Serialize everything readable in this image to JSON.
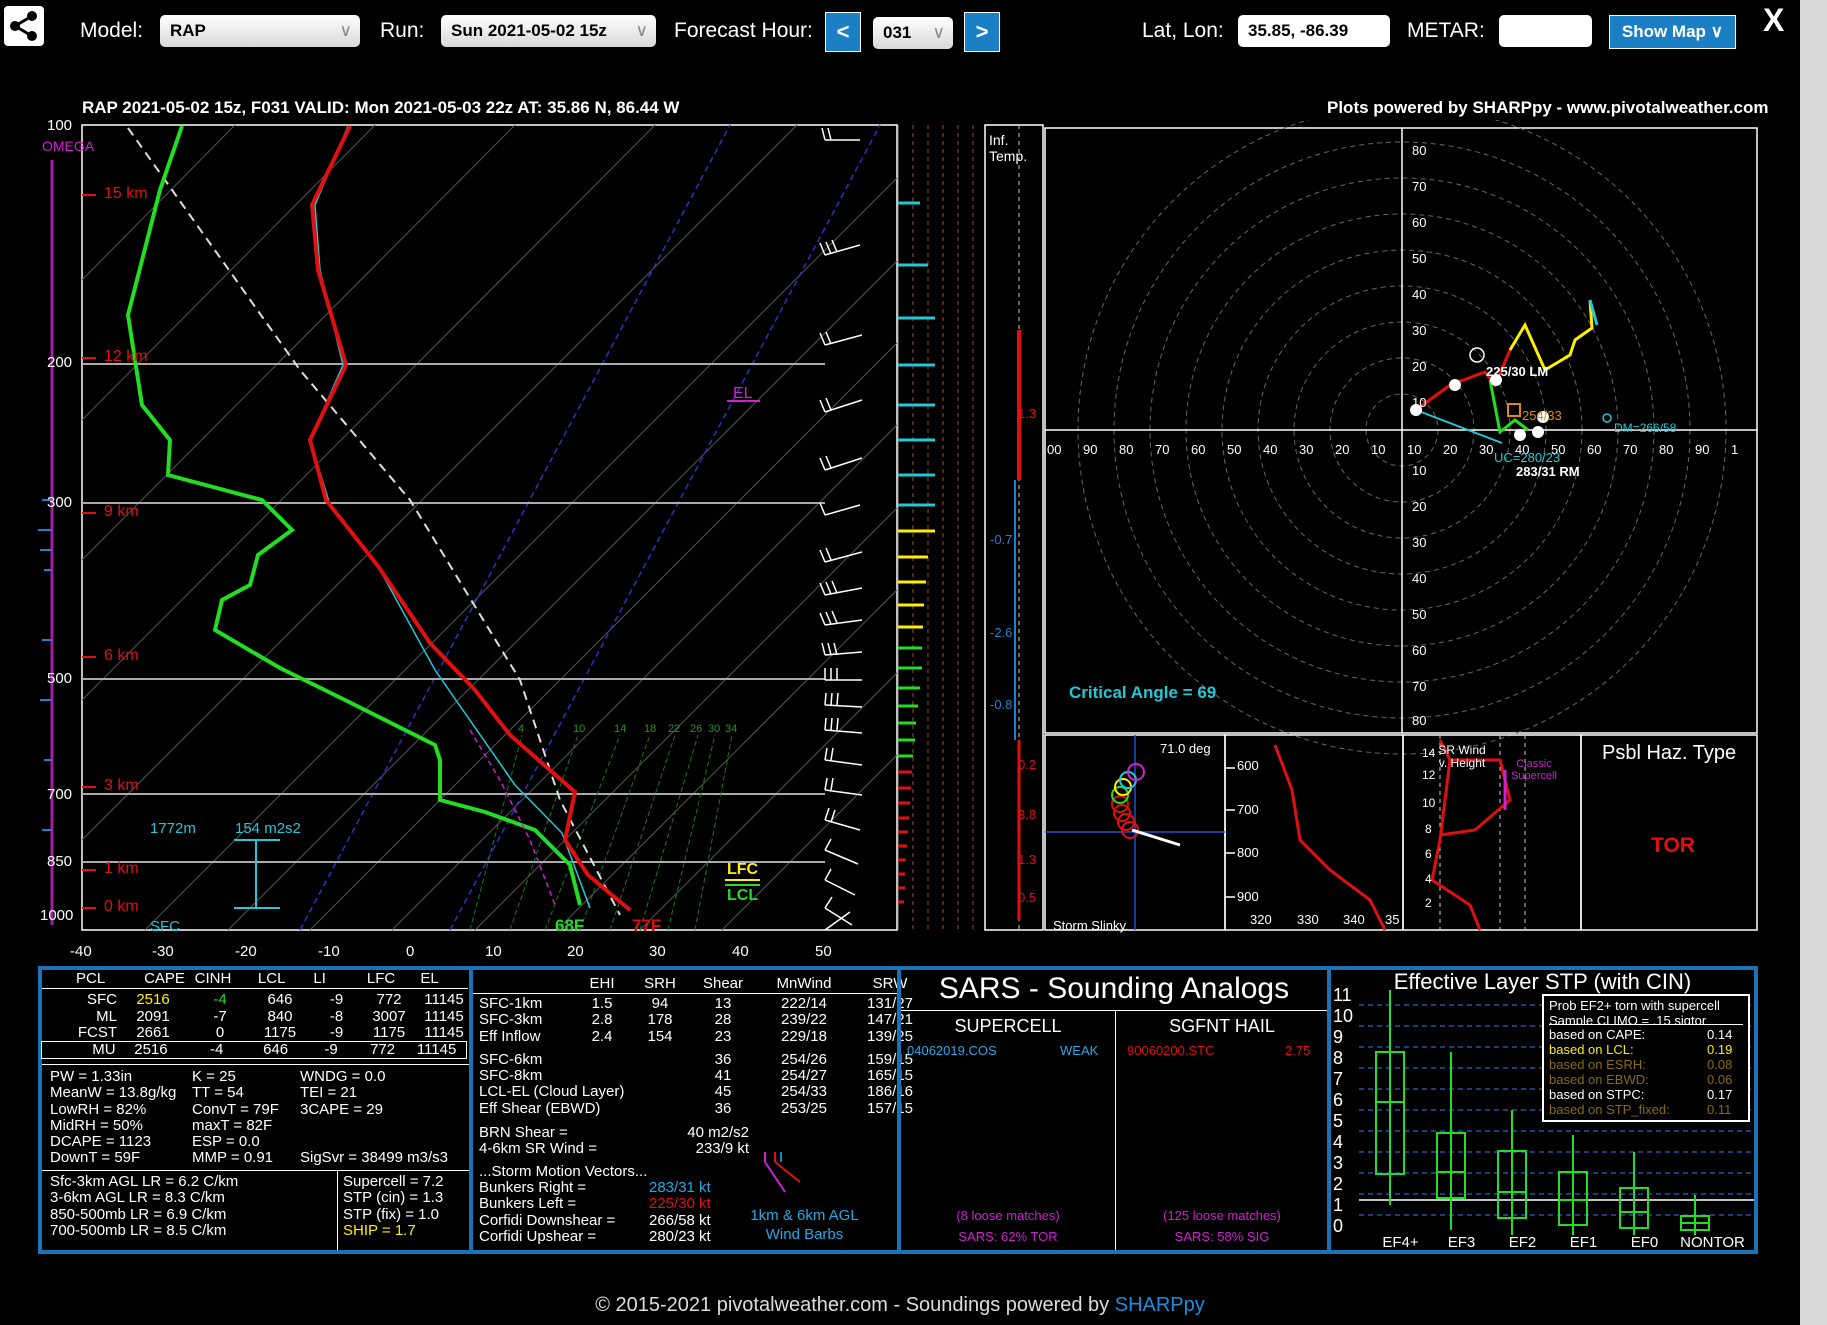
{
  "header": {
    "model_label": "Model:",
    "model_value": "RAP",
    "run_label": "Run:",
    "run_value": "Sun 2021-05-02 15z",
    "forecast_label": "Forecast Hour:",
    "prev": "<",
    "next": ">",
    "forecast_hour": "031",
    "latlon_label": "Lat, Lon:",
    "latlon_value": "35.85, -86.39",
    "metar_label": "METAR:",
    "metar_value": "",
    "show_map": "Show Map ∨",
    "close": "X",
    "share_icon": "share-icon"
  },
  "plot": {
    "title": "RAP 2021-05-02 15z, F031  VALID: Mon 2021-05-03 22z  AT: 35.86 N, 86.44 W",
    "credit": "Plots powered by SHARPpy - www.pivotalweather.com",
    "omega": "OMEGA",
    "pressure_labels": [
      "100",
      "200",
      "300",
      "500",
      "700",
      "850",
      "1000"
    ],
    "km_labels": [
      "15 km",
      "12 km",
      "9 km",
      "6 km",
      "3 km",
      "1 km",
      "0 km"
    ],
    "temp_ticks": [
      "-40",
      "-30",
      "-20",
      "-10",
      "0",
      "10",
      "20",
      "30",
      "40",
      "50"
    ],
    "sfc": "SFC",
    "surface_dewpoint": "68F",
    "surface_temp": "77F",
    "el": "EL",
    "lfc": "LFC",
    "lcl": "LCL",
    "helicity_height": "1772m",
    "helicity_value": "154 m2s2",
    "mixing_ratios": [
      "4",
      "10",
      "14",
      "18",
      "22",
      "26",
      "30",
      "34"
    ],
    "inf_temp": "Inf.\nTemp.",
    "inf_values": [
      "1.3",
      "-0.7",
      "-2.6",
      "-0.8",
      "0.2",
      "3.8",
      "1.3",
      "0.5"
    ],
    "hodo_rings": [
      "80",
      "70",
      "60",
      "50",
      "40",
      "30",
      "20",
      "10"
    ],
    "hodo_x": [
      "00",
      "90",
      "80",
      "70",
      "60",
      "50",
      "40",
      "30",
      "20",
      "10",
      "10",
      "20",
      "30",
      "40",
      "50",
      "60",
      "70",
      "80",
      "90",
      "1"
    ],
    "hodo_lm": "225/30 LM",
    "hodo_mean": "254/33",
    "hodo_dm": "DM=266/58",
    "hodo_uc": "UC=280/23",
    "hodo_rm": "283/31 RM",
    "critical_angle": "Critical Angle = 69",
    "slinky_deg": "71.0 deg",
    "slinky_label": "Storm Slinky",
    "theta_p": [
      "600",
      "700",
      "800",
      "900"
    ],
    "theta_x": [
      "320",
      "330",
      "340",
      "35"
    ],
    "srwind_label": "SR Wind v. Height",
    "srwind_classic": "Classic Supercell",
    "srwind_y": [
      "14",
      "12",
      "10",
      "8",
      "6",
      "4",
      "2"
    ],
    "haz_title": "Psbl Haz. Type",
    "haz_value": "TOR"
  },
  "thermo": {
    "headers": [
      "PCL",
      "CAPE",
      "CINH",
      "LCL",
      "LI",
      "LFC",
      "EL"
    ],
    "rows": [
      [
        "SFC",
        "2516",
        "-4",
        "646",
        "-9",
        "772",
        "11145"
      ],
      [
        "ML",
        "2091",
        "-7",
        "840",
        "-8",
        "3007",
        "11145"
      ],
      [
        "FCST",
        "2661",
        "0",
        "1175",
        "-9",
        "1175",
        "11145"
      ],
      [
        "MU",
        "2516",
        "-4",
        "646",
        "-9",
        "772",
        "11145"
      ]
    ],
    "indices": [
      [
        "PW = 1.33in",
        "K = 25",
        "WNDG = 0.0"
      ],
      [
        "MeanW = 13.8g/kg",
        "TT = 54",
        "TEI = 21"
      ],
      [
        "LowRH = 82%",
        "ConvT = 79F",
        "3CAPE = 29"
      ],
      [
        "MidRH = 50%",
        "maxT = 82F",
        ""
      ],
      [
        "DCAPE = 1123",
        "ESP = 0.0",
        ""
      ],
      [
        "DownT = 59F",
        "MMP = 0.91",
        "SigSvr = 38499 m3/s3"
      ]
    ],
    "lapse": [
      "Sfc-3km AGL LR = 6.2 C/km",
      "3-6km AGL LR = 8.3 C/km",
      "850-500mb LR = 6.9 C/km",
      "700-500mb LR = 8.5 C/km"
    ],
    "composites": [
      "Supercell = 7.2",
      "STP (cin) = 1.3",
      "STP (fix) = 1.0",
      "SHIP = 1.7"
    ]
  },
  "kinematic": {
    "headers": [
      "EHI",
      "SRH",
      "Shear",
      "MnWind",
      "SRW"
    ],
    "rows": [
      [
        "SFC-1km",
        "1.5",
        "94",
        "13",
        "222/14",
        "131/27"
      ],
      [
        "SFC-3km",
        "2.8",
        "178",
        "28",
        "239/22",
        "147/21"
      ],
      [
        "Eff Inflow",
        "2.4",
        "154",
        "23",
        "229/18",
        "139/25"
      ],
      [
        "SFC-6km",
        "",
        "",
        "36",
        "254/26",
        "159/15"
      ],
      [
        "SFC-8km",
        "",
        "",
        "41",
        "254/27",
        "165/15"
      ],
      [
        "LCL-EL (Cloud Layer)",
        "",
        "",
        "45",
        "254/33",
        "186/16"
      ],
      [
        "Eff Shear (EBWD)",
        "",
        "",
        "36",
        "253/25",
        "157/15"
      ]
    ],
    "brn_label": "BRN Shear =",
    "brn_value": "40 m2/s2",
    "sr46_label": "4-6km SR Wind =",
    "sr46_value": "233/9 kt",
    "vectors_title": "...Storm Motion Vectors...",
    "vectors": [
      [
        "Bunkers Right =",
        "283/31 kt"
      ],
      [
        "Bunkers Left =",
        "225/30 kt"
      ],
      [
        "Corfidi Downshear =",
        "266/58 kt"
      ],
      [
        "Corfidi Upshear =",
        "280/23 kt"
      ]
    ],
    "barbs_label": "1km & 6km AGL Wind Barbs"
  },
  "sars": {
    "title": "SARS - Sounding Analogs",
    "supercell": "SUPERCELL",
    "hail": "SGFNT HAIL",
    "sc_match": "04062019.COS",
    "sc_match_val": "WEAK",
    "hail_match": "90060200.STC",
    "hail_match_val": "2.75",
    "sc_loose": "(8 loose matches)",
    "sc_pct": "SARS: 62% TOR",
    "hail_loose": "(125 loose matches)",
    "hail_pct": "SARS: 58% SIG"
  },
  "stp": {
    "title": "Effective Layer STP (with CIN)",
    "y_labels": [
      "11",
      "10",
      "9",
      "8",
      "7",
      "6",
      "5",
      "4",
      "3",
      "2",
      "1",
      "0"
    ],
    "categories": [
      "EF4+",
      "EF3",
      "EF2",
      "EF1",
      "EF0",
      "NONTOR"
    ],
    "prob_title": "Prob EF2+ torn with supercell",
    "prob_sub": "Sample CLIMO = .15 sigtor",
    "probs": [
      [
        "based on CAPE:",
        "0.14"
      ],
      [
        "based on LCL:",
        "0.19"
      ],
      [
        "based on ESRH:",
        "0.08"
      ],
      [
        "based on EBWD:",
        "0.06"
      ],
      [
        "based on STPC:",
        "0.17"
      ],
      [
        "based on STP_fixed:",
        "0.11"
      ]
    ]
  },
  "footer": {
    "text": "© 2015-2021 pivotalweather.com - Soundings powered by",
    "link": "SHARPpy"
  },
  "colors": {
    "accent": "#1a7fc4",
    "panel_border": "#1a73b6",
    "temp": "#e01010",
    "dewpoint": "#22dd22",
    "cyan": "#22c8d8",
    "yellow": "#ffee00",
    "magenta": "#d020d0"
  }
}
